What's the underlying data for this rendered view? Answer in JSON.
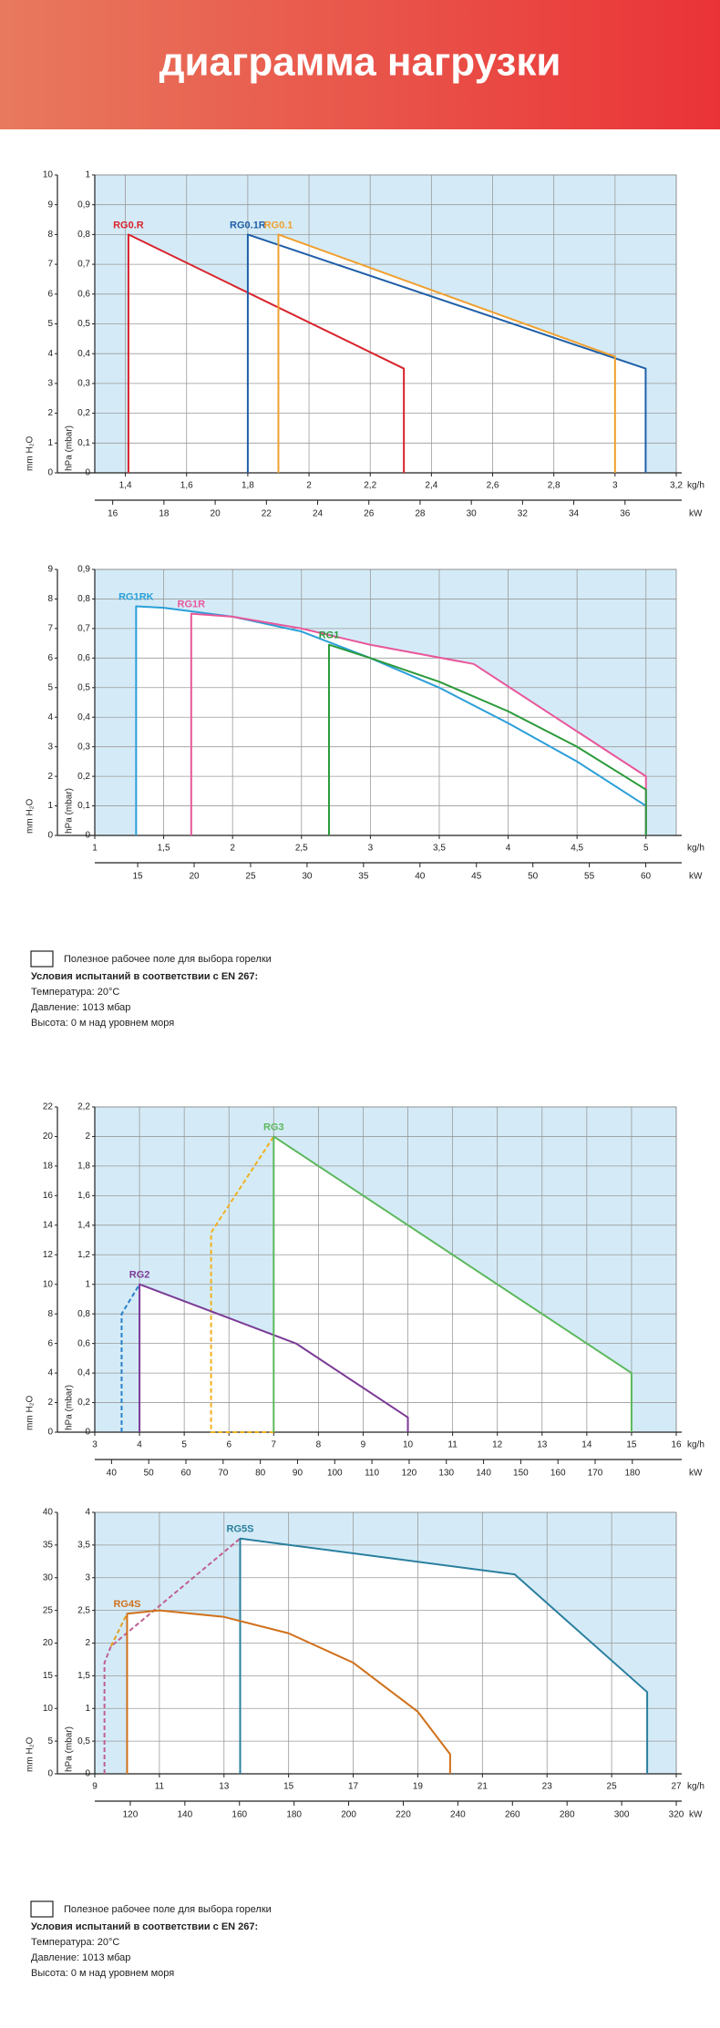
{
  "header": {
    "title": "диаграмма нагрузки"
  },
  "chart_data": [
    {
      "type": "line",
      "xlabel": "kg/h",
      "x2label": "kW",
      "ylabel": "hPa (mbar)",
      "y2label": "mm H₂O",
      "grid": true,
      "xlim": [
        1.3,
        3.2
      ],
      "xticks": [
        {
          "value": 1.4,
          "label": "1,4"
        },
        {
          "value": 1.6,
          "label": "1,6"
        },
        {
          "value": 1.8,
          "label": "1,8"
        },
        2,
        {
          "value": 2.2,
          "label": "2,2"
        },
        {
          "value": 2.4,
          "label": "2,4"
        },
        {
          "value": 2.6,
          "label": "2,6"
        },
        {
          "value": 2.8,
          "label": "2,8"
        },
        3,
        {
          "value": 3.2,
          "label": "3,2"
        }
      ],
      "x2lim": [
        15.3,
        38
      ],
      "x2ticks": [
        16,
        18,
        20,
        22,
        24,
        26,
        28,
        30,
        32,
        34,
        36
      ],
      "ylim": [
        0,
        1
      ],
      "yticks": [
        0,
        {
          "value": 0.1,
          "label": "0,1"
        },
        {
          "value": 0.2,
          "label": "0,2"
        },
        {
          "value": 0.3,
          "label": "0,3"
        },
        {
          "value": 0.4,
          "label": "0,4"
        },
        {
          "value": 0.5,
          "label": "0,5"
        },
        {
          "value": 0.6,
          "label": "0,6"
        },
        {
          "value": 0.7,
          "label": "0,7"
        },
        {
          "value": 0.8,
          "label": "0,8"
        },
        {
          "value": 0.9,
          "label": "0,9"
        },
        1
      ],
      "y2lim": [
        0,
        10
      ],
      "y2ticks": [
        0,
        1,
        2,
        3,
        4,
        5,
        6,
        7,
        8,
        9,
        10
      ],
      "series": [
        {
          "name": "RG0.R",
          "color": "#d9232d",
          "x": [
            1.41,
            1.41,
            2.31,
            2.31
          ],
          "values": [
            0,
            0.8,
            0.35,
            0
          ]
        },
        {
          "name": "RG0.1R",
          "color": "#1f5fa8",
          "x": [
            1.8,
            1.8,
            3.1,
            3.1
          ],
          "values": [
            0,
            0.8,
            0.35,
            0
          ]
        },
        {
          "name": "RG0.1",
          "color": "#f0a030",
          "x": [
            1.9,
            1.9,
            3.0,
            3.0
          ],
          "values": [
            0,
            0.8,
            0.39,
            0
          ]
        }
      ]
    },
    {
      "type": "line",
      "xlabel": "kg/h",
      "x2label": "kW",
      "ylabel": "hPa (mbar)",
      "y2label": "mm H₂O",
      "grid": true,
      "xlim": [
        1,
        5.22
      ],
      "xticks": [
        1,
        {
          "value": 1.5,
          "label": "1,5"
        },
        2,
        {
          "value": 2.5,
          "label": "2,5"
        },
        3,
        {
          "value": 3.5,
          "label": "3,5"
        },
        4,
        {
          "value": 4.5,
          "label": "4,5"
        },
        5
      ],
      "x2lim": [
        11.2,
        62.7
      ],
      "x2ticks": [
        15,
        20,
        25,
        30,
        35,
        40,
        45,
        50,
        55,
        60
      ],
      "ylim": [
        0,
        0.9
      ],
      "yticks": [
        0,
        {
          "value": 0.1,
          "label": "0,1"
        },
        {
          "value": 0.2,
          "label": "0,2"
        },
        {
          "value": 0.3,
          "label": "0,3"
        },
        {
          "value": 0.4,
          "label": "0,4"
        },
        {
          "value": 0.5,
          "label": "0,5"
        },
        {
          "value": 0.6,
          "label": "0,6"
        },
        {
          "value": 0.7,
          "label": "0,7"
        },
        {
          "value": 0.8,
          "label": "0,8"
        },
        {
          "value": 0.9,
          "label": "0,9"
        }
      ],
      "y2lim": [
        0,
        9
      ],
      "y2ticks": [
        0,
        1,
        2,
        3,
        4,
        5,
        6,
        7,
        8,
        9
      ],
      "series": [
        {
          "name": "RG1RK",
          "color": "#2a9fd8",
          "x": [
            1.3,
            1.3,
            1.5,
            2,
            2.5,
            3,
            3.5,
            4,
            4.5,
            5,
            5
          ],
          "values": [
            0,
            0.775,
            0.77,
            0.74,
            0.69,
            0.6,
            0.5,
            0.38,
            0.25,
            0.1,
            0
          ]
        },
        {
          "name": "RG1R",
          "color": "#e8579a",
          "x": [
            1.7,
            1.7,
            2,
            2.5,
            3,
            3.75,
            5,
            5
          ],
          "values": [
            0,
            0.75,
            0.74,
            0.7,
            0.645,
            0.58,
            0.2,
            0
          ]
        },
        {
          "name": "RG1",
          "color": "#2a9a3a",
          "x": [
            2.7,
            2.7,
            3,
            3.5,
            4,
            4.5,
            5,
            5
          ],
          "values": [
            0,
            0.645,
            0.6,
            0.52,
            0.42,
            0.3,
            0.155,
            0
          ]
        }
      ]
    },
    {
      "type": "line",
      "xlabel": "kg/h",
      "x2label": "kW",
      "ylabel": "hPa (mbar)",
      "y2label": "mm H₂O",
      "grid": true,
      "xlim": [
        3,
        16
      ],
      "xticks": [
        3,
        4,
        5,
        6,
        7,
        8,
        9,
        10,
        11,
        12,
        13,
        14,
        15,
        16
      ],
      "x2lim": [
        35.5,
        191.8
      ],
      "x2ticks": [
        40,
        50,
        60,
        70,
        80,
        90,
        100,
        110,
        120,
        130,
        140,
        150,
        160,
        170,
        180
      ],
      "ylim": [
        0,
        2.2
      ],
      "yticks": [
        0,
        {
          "value": 0.2,
          "label": "0,2"
        },
        {
          "value": 0.4,
          "label": "0,4"
        },
        {
          "value": 0.6,
          "label": "0,6"
        },
        {
          "value": 0.8,
          "label": "0,8"
        },
        1,
        {
          "value": 1.2,
          "label": "1,2"
        },
        {
          "value": 1.4,
          "label": "1,4"
        },
        {
          "value": 1.6,
          "label": "1,6"
        },
        {
          "value": 1.8,
          "label": "1,8"
        },
        2,
        {
          "value": 2.2,
          "label": "2,2"
        }
      ],
      "y2lim": [
        0,
        22
      ],
      "y2ticks": [
        0,
        2,
        4,
        6,
        8,
        10,
        12,
        14,
        16,
        18,
        20,
        22
      ],
      "series": [
        {
          "color": "#2a7fc8",
          "dashed": true,
          "x": [
            3.6,
            3.6,
            4
          ],
          "values": [
            0,
            0.8,
            1
          ]
        },
        {
          "color": "#f2b01e",
          "dashed": true,
          "x": [
            7,
            5.6,
            5.6,
            7
          ],
          "values": [
            0,
            0,
            1.35,
            2
          ]
        },
        {
          "name": "RG2",
          "color": "#7b3a96",
          "x": [
            4,
            4,
            7.5,
            10,
            10
          ],
          "values": [
            0,
            1,
            0.6,
            0.1,
            0
          ]
        },
        {
          "name": "RG3",
          "color": "#5cb85c",
          "x": [
            7,
            7,
            15,
            15
          ],
          "values": [
            0,
            2,
            0.4,
            0
          ]
        }
      ]
    },
    {
      "type": "line",
      "xlabel": "kg/h",
      "x2label": "kW",
      "ylabel": "hPa (mbar)",
      "y2label": "mm H₂O",
      "grid": true,
      "xlim": [
        9,
        27
      ],
      "xticks": [
        9,
        11,
        13,
        15,
        17,
        19,
        21,
        23,
        25,
        27
      ],
      "x2lim": [
        107,
        320
      ],
      "x2ticks": [
        120,
        140,
        160,
        180,
        200,
        220,
        240,
        260,
        280,
        300,
        320
      ],
      "ylim": [
        0,
        4
      ],
      "yticks": [
        0,
        {
          "value": 0.5,
          "label": "0,5"
        },
        1,
        {
          "value": 1.5,
          "label": "1,5"
        },
        2,
        {
          "value": 2.5,
          "label": "2,5"
        },
        3,
        {
          "value": 3.5,
          "label": "3,5"
        },
        4
      ],
      "y2lim": [
        0,
        40
      ],
      "y2ticks": [
        0,
        5,
        10,
        15,
        20,
        25,
        30,
        35,
        40
      ],
      "series": [
        {
          "color": "#c06090",
          "dashed": true,
          "x": [
            9.3,
            9.3,
            9.5,
            13.5
          ],
          "values": [
            0,
            1.7,
            1.95,
            3.6
          ]
        },
        {
          "color": "#e0a020",
          "dashed": true,
          "x": [
            9.5,
            10
          ],
          "values": [
            1.95,
            2.45
          ]
        },
        {
          "name": "RG5S",
          "color": "#2a7f9e",
          "x": [
            13.5,
            13.5,
            22,
            26.1,
            26.1
          ],
          "values": [
            0,
            3.6,
            3.05,
            1.25,
            0
          ]
        },
        {
          "name": "RG4S",
          "color": "#d0701a",
          "x": [
            10,
            10,
            11,
            13,
            15,
            17,
            19,
            20,
            20
          ],
          "values": [
            0,
            2.45,
            2.5,
            2.4,
            2.15,
            1.7,
            0.95,
            0.3,
            0
          ]
        }
      ]
    }
  ],
  "notes": [
    {
      "legend": "Полезное рабочее поле для выбора горелки",
      "conditions_title": "Условия испытаний в соответствии с EN 267:",
      "conditions": [
        "Температура: 20°C",
        "Давление: 1013 мбар",
        "Высота: 0 м над уровнем моря"
      ]
    },
    {
      "legend": "Полезное рабочее поле для выбора горелки",
      "conditions_title": "Условия испытаний в соответствии с EN 267:",
      "conditions": [
        "Температура: 20°C",
        "Давление: 1013 мбар",
        "Высота: 0 м над уровнем моря"
      ]
    }
  ]
}
